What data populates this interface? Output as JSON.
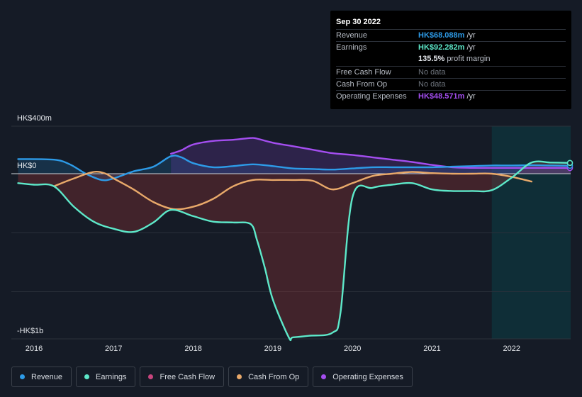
{
  "tooltip": {
    "date": "Sep 30 2022",
    "rows": [
      {
        "label": "Revenue",
        "value": "HK$68.088m",
        "unit": "/yr",
        "color": "#2d9be8"
      },
      {
        "label": "Earnings",
        "value": "HK$92.282m",
        "unit": "/yr",
        "color": "#5de8c9"
      },
      {
        "label": "",
        "value": "135.5%",
        "unit": "profit margin"
      },
      {
        "label": "Free Cash Flow",
        "value": "No data"
      },
      {
        "label": "Cash From Op",
        "value": "No data"
      },
      {
        "label": "Operating Expenses",
        "value": "HK$48.571m",
        "unit": "/yr",
        "color": "#a44ef0"
      }
    ]
  },
  "legend": [
    {
      "label": "Revenue",
      "color": "#2d9be8"
    },
    {
      "label": "Earnings",
      "color": "#5de8c9"
    },
    {
      "label": "Free Cash Flow",
      "color": "#c7457d"
    },
    {
      "label": "Cash From Op",
      "color": "#e9a96a"
    },
    {
      "label": "Operating Expenses",
      "color": "#a44ef0"
    }
  ],
  "chart_data": {
    "type": "line",
    "title": "",
    "xlabel": "",
    "ylabel": "",
    "ylim": [
      -1000,
      400
    ],
    "xlim": [
      2015.8,
      2022.75
    ],
    "y_tick_labels": [
      {
        "value": 400,
        "label": "HK$400m"
      },
      {
        "value": 0,
        "label": "HK$0"
      },
      {
        "value": -1000,
        "label": "-HK$1b"
      }
    ],
    "x_tick_labels": [
      "2016",
      "2017",
      "2018",
      "2019",
      "2020",
      "2021",
      "2022"
    ],
    "x_ticks": [
      2016,
      2017,
      2018,
      2019,
      2020,
      2021,
      2022
    ],
    "grid": true,
    "forecast_shading_from": 2021.75,
    "series": [
      {
        "name": "Revenue",
        "color": "#2d9be8",
        "x": [
          2015.8,
          2016.25,
          2016.45,
          2016.65,
          2016.85,
          2017.0,
          2017.25,
          2017.5,
          2017.72,
          2017.85,
          2018.0,
          2018.25,
          2018.5,
          2018.75,
          2019.0,
          2019.25,
          2019.5,
          2019.75,
          2020.0,
          2020.25,
          2020.5,
          2020.75,
          2021.0,
          2021.25,
          2021.5,
          2021.75,
          2022.0,
          2022.25,
          2022.5,
          2022.75
        ],
        "y": [
          125,
          120,
          80,
          0,
          -40,
          -30,
          20,
          60,
          150,
          140,
          90,
          55,
          65,
          80,
          65,
          45,
          40,
          35,
          45,
          55,
          55,
          55,
          55,
          60,
          65,
          70,
          70,
          72,
          70,
          68
        ]
      },
      {
        "name": "Earnings",
        "color": "#5de8c9",
        "x": [
          2015.8,
          2016.0,
          2016.25,
          2016.5,
          2016.75,
          2017.0,
          2017.25,
          2017.5,
          2017.72,
          2018.0,
          2018.25,
          2018.5,
          2018.72,
          2018.8,
          2018.9,
          2019.0,
          2019.2,
          2019.25,
          2019.45,
          2019.75,
          2019.85,
          2020.0,
          2020.25,
          2020.5,
          2020.75,
          2021.0,
          2021.25,
          2021.5,
          2021.75,
          2022.0,
          2022.25,
          2022.5,
          2022.75
        ],
        "y": [
          -60,
          -70,
          -80,
          -210,
          -305,
          -350,
          -370,
          -310,
          -230,
          -270,
          -305,
          -310,
          -320,
          -420,
          -600,
          -800,
          -1040,
          -1040,
          -1030,
          -1010,
          -880,
          -150,
          -90,
          -70,
          -60,
          -100,
          -110,
          -110,
          -105,
          -25,
          95,
          95,
          92
        ]
      },
      {
        "name": "Cash From Op",
        "color": "#e9a96a",
        "x": [
          2016.25,
          2016.5,
          2016.75,
          2016.9,
          2017.0,
          2017.25,
          2017.5,
          2017.75,
          2018.0,
          2018.25,
          2018.5,
          2018.75,
          2019.0,
          2019.25,
          2019.5,
          2019.75,
          2020.0,
          2020.25,
          2020.5,
          2020.75,
          2021.0,
          2021.25,
          2021.5,
          2021.75,
          2022.0,
          2022.25
        ],
        "y": [
          -80,
          -30,
          15,
          0,
          -30,
          -100,
          -180,
          -225,
          -210,
          -160,
          -80,
          -40,
          -40,
          -40,
          -45,
          -100,
          -60,
          -15,
          0,
          15,
          5,
          0,
          0,
          0,
          -20,
          -50
        ]
      },
      {
        "name": "Operating Expenses",
        "color": "#a44ef0",
        "x": [
          2017.72,
          2017.85,
          2018.0,
          2018.25,
          2018.5,
          2018.72,
          2018.8,
          2019.0,
          2019.25,
          2019.5,
          2019.75,
          2020.0,
          2020.25,
          2020.5,
          2020.75,
          2021.0,
          2021.25,
          2021.5,
          2021.75,
          2022.0,
          2022.25,
          2022.5,
          2022.75
        ],
        "y": [
          170,
          200,
          250,
          280,
          290,
          305,
          300,
          265,
          235,
          205,
          175,
          160,
          140,
          120,
          100,
          75,
          55,
          50,
          50,
          50,
          50,
          50,
          49
        ]
      }
    ]
  }
}
